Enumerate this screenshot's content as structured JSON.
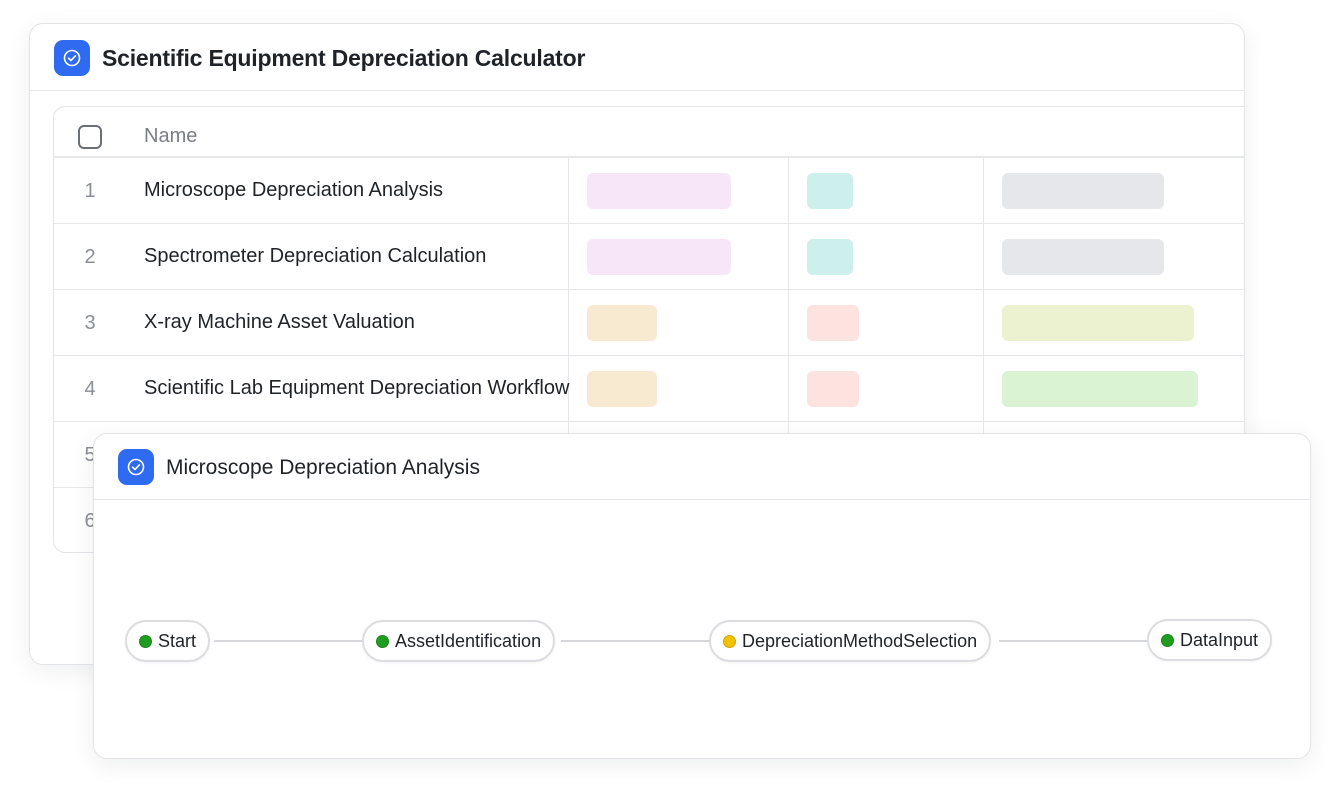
{
  "main_window": {
    "title": "Scientific Equipment Depreciation Calculator",
    "icon": "check-circle-icon",
    "accent_color": "#2f6bf0"
  },
  "table": {
    "columns": {
      "name": "Name"
    },
    "rows": [
      {
        "num": "1",
        "name": "Microscope Depreciation Analysis",
        "tags": [
          "#f7e6f8",
          "#cdf0ed",
          "#e6e7ea"
        ]
      },
      {
        "num": "2",
        "name": "Spectrometer Depreciation Calculation",
        "tags": [
          "#f7e6f8",
          "#cdf0ed",
          "#e6e7ea"
        ]
      },
      {
        "num": "3",
        "name": "X-ray Machine Asset Valuation",
        "tags": [
          "#f8ead0",
          "#fce3e0",
          "#ecf2cf"
        ]
      },
      {
        "num": "4",
        "name": "Scientific Lab Equipment Depreciation Workflow",
        "tags": [
          "#f8ead0",
          "#fce3e0",
          "#d9f3d3"
        ]
      },
      {
        "num": "5",
        "name": ""
      },
      {
        "num": "6",
        "name": ""
      }
    ]
  },
  "flow_window": {
    "title": "Microscope Depreciation Analysis",
    "icon": "check-circle-icon",
    "nodes": [
      {
        "label": "Start",
        "status_color": "#1f9d1f"
      },
      {
        "label": "AssetIdentification",
        "status_color": "#1f9d1f"
      },
      {
        "label": "DepreciationMethodSelection",
        "status_color": "#f2c200"
      },
      {
        "label": "DataInput",
        "status_color": "#1f9d1f"
      }
    ]
  }
}
